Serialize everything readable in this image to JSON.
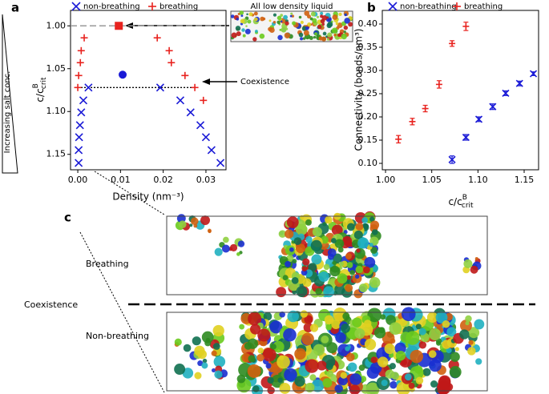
{
  "panel_labels": [
    "a",
    "b",
    "c"
  ],
  "chart_data": [
    {
      "type": "scatter",
      "x_label": "Density (nm⁻³)",
      "y_label": {
        "main": "c/c",
        "sup": "B",
        "sub": "crit"
      },
      "series": [
        {
          "name": "non-breathing",
          "color": "#1a1ad6",
          "marker": "x",
          "x": [
            0.0025,
            0.0013,
            0.0008,
            0.0005,
            0.0003,
            0.0002,
            0.0002,
            0.0193,
            0.024,
            0.0264,
            0.0287,
            0.03,
            0.0313,
            0.0334
          ],
          "values": [
            1.072,
            1.087,
            1.101,
            1.116,
            1.13,
            1.145,
            1.16,
            1.072,
            1.087,
            1.101,
            1.116,
            1.13,
            1.145,
            1.16
          ]
        },
        {
          "name": "breathing",
          "color": "#e8231f",
          "marker": "plus",
          "x": [
            0.0015,
            0.0008,
            0.0006,
            0.0002,
            0.0,
            0.0186,
            0.0214,
            0.0219,
            0.0251,
            0.0274,
            0.0294
          ],
          "values": [
            1.014,
            1.029,
            1.043,
            1.058,
            1.072,
            1.014,
            1.029,
            1.043,
            1.058,
            1.072,
            1.087
          ]
        }
      ],
      "highlight_points": [
        {
          "x": 0.0096,
          "y": 1.0,
          "color": "#e8231f",
          "marker": "square"
        },
        {
          "x": 0.0105,
          "y": 1.057,
          "color": "#1a1ad6",
          "marker": "circle"
        }
      ],
      "reference_line": 1.0,
      "coexistence": {
        "y": 1.072,
        "x": [
          0.0,
          0.0274
        ]
      },
      "xlim": [
        -0.0017,
        0.0347
      ],
      "ylim": [
        0.982,
        1.168
      ],
      "y_inverted": true,
      "xticks": [
        {
          "value": 0,
          "label": "0.00"
        },
        0.01,
        0.02,
        0.03
      ],
      "yticks": [
        {
          "value": 1,
          "label": "1.00"
        },
        1.05,
        {
          "value": 1.1,
          "label": "1.10"
        },
        1.15
      ],
      "legend": "top",
      "annotations": {
        "inset": "All low density liquid",
        "coexistence": "Coexistence",
        "side": "Increasing salt conc."
      }
    },
    {
      "type": "errorbar",
      "x_label": {
        "main": "c/c",
        "sup": "B",
        "sub": "crit"
      },
      "y_label": "Connectivity (bonds/nm³)",
      "series": [
        {
          "name": "non-breathing",
          "color": "#1a1ad6",
          "marker": "x",
          "x": [
            1.072,
            1.087,
            1.101,
            1.116,
            1.13,
            1.145,
            1.16
          ],
          "values": [
            0.108,
            0.156,
            0.195,
            0.222,
            0.251,
            0.272,
            0.293
          ],
          "errors": [
            0.008,
            0.006,
            0.005,
            0.006,
            0.005,
            0.005,
            0.004
          ]
        },
        {
          "name": "breathing",
          "color": "#e8231f",
          "marker": "plus",
          "x": [
            1.014,
            1.029,
            1.043,
            1.058,
            1.072,
            1.087
          ],
          "values": [
            0.152,
            0.19,
            0.218,
            0.27,
            0.358,
            0.395
          ],
          "errors": [
            0.008,
            0.007,
            0.007,
            0.008,
            0.006,
            0.009
          ]
        }
      ],
      "xlim": [
        0.9965,
        1.1656
      ],
      "ylim": [
        0.0862,
        0.4293
      ],
      "xticks": [
        {
          "value": 1,
          "label": "1.00"
        },
        1.05,
        {
          "value": 1.1,
          "label": "1.10"
        },
        1.15
      ],
      "yticks": [
        {
          "value": 0.1,
          "label": "0.10"
        },
        0.15,
        {
          "value": 0.2,
          "label": "0.20"
        },
        0.25,
        {
          "value": 0.3,
          "label": "0.30"
        },
        0.35,
        {
          "value": 0.4,
          "label": "0.40"
        }
      ],
      "legend": "top"
    }
  ],
  "panel_c": {
    "breathing": "Breathing",
    "coexistence": "Coexistence",
    "non_breathing": "Non-breathing"
  }
}
